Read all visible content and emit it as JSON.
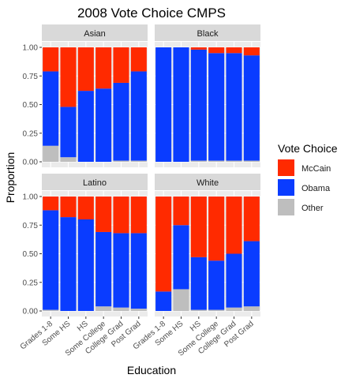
{
  "chart_data": {
    "type": "bar",
    "stacked": true,
    "title": "2008 Vote Choice CMPS",
    "xlabel": "Education",
    "ylabel": "Proportion",
    "ylim": [
      0,
      1
    ],
    "yticks": [
      "0.00",
      "0.25",
      "0.50",
      "0.75",
      "1.00"
    ],
    "grid": true,
    "categories": [
      "Grades 1-8",
      "Some HS",
      "HS",
      "Some College",
      "College Grad",
      "Post Grad"
    ],
    "legend": {
      "title": "Vote Choice",
      "position": "right",
      "entries": [
        {
          "name": "McCain",
          "color": "#ff2a00"
        },
        {
          "name": "Obama",
          "color": "#0a3cff"
        },
        {
          "name": "Other",
          "color": "#bebebe"
        }
      ]
    },
    "panels": [
      {
        "label": "Asian",
        "series": [
          {
            "name": "Other",
            "values": [
              0.14,
              0.04,
              0.0,
              0.0,
              0.01,
              0.01
            ]
          },
          {
            "name": "Obama",
            "values": [
              0.65,
              0.44,
              0.62,
              0.64,
              0.68,
              0.78
            ]
          },
          {
            "name": "McCain",
            "values": [
              0.21,
              0.52,
              0.38,
              0.36,
              0.31,
              0.21
            ]
          }
        ]
      },
      {
        "label": "Black",
        "series": [
          {
            "name": "Other",
            "values": [
              0.0,
              0.0,
              0.01,
              0.01,
              0.01,
              0.01
            ]
          },
          {
            "name": "Obama",
            "values": [
              1.0,
              1.0,
              0.97,
              0.94,
              0.94,
              0.92
            ]
          },
          {
            "name": "McCain",
            "values": [
              0.0,
              0.0,
              0.02,
              0.05,
              0.05,
              0.07
            ]
          }
        ]
      },
      {
        "label": "Latino",
        "series": [
          {
            "name": "Other",
            "values": [
              0.01,
              0.0,
              0.0,
              0.04,
              0.03,
              0.02
            ]
          },
          {
            "name": "Obama",
            "values": [
              0.87,
              0.82,
              0.8,
              0.65,
              0.65,
              0.66
            ]
          },
          {
            "name": "McCain",
            "values": [
              0.12,
              0.18,
              0.2,
              0.31,
              0.32,
              0.32
            ]
          }
        ]
      },
      {
        "label": "White",
        "series": [
          {
            "name": "Other",
            "values": [
              0.0,
              0.19,
              0.01,
              0.01,
              0.03,
              0.04
            ]
          },
          {
            "name": "Obama",
            "values": [
              0.17,
              0.56,
              0.46,
              0.43,
              0.47,
              0.57
            ]
          },
          {
            "name": "McCain",
            "values": [
              0.83,
              0.25,
              0.53,
              0.56,
              0.5,
              0.39
            ]
          }
        ]
      }
    ]
  }
}
